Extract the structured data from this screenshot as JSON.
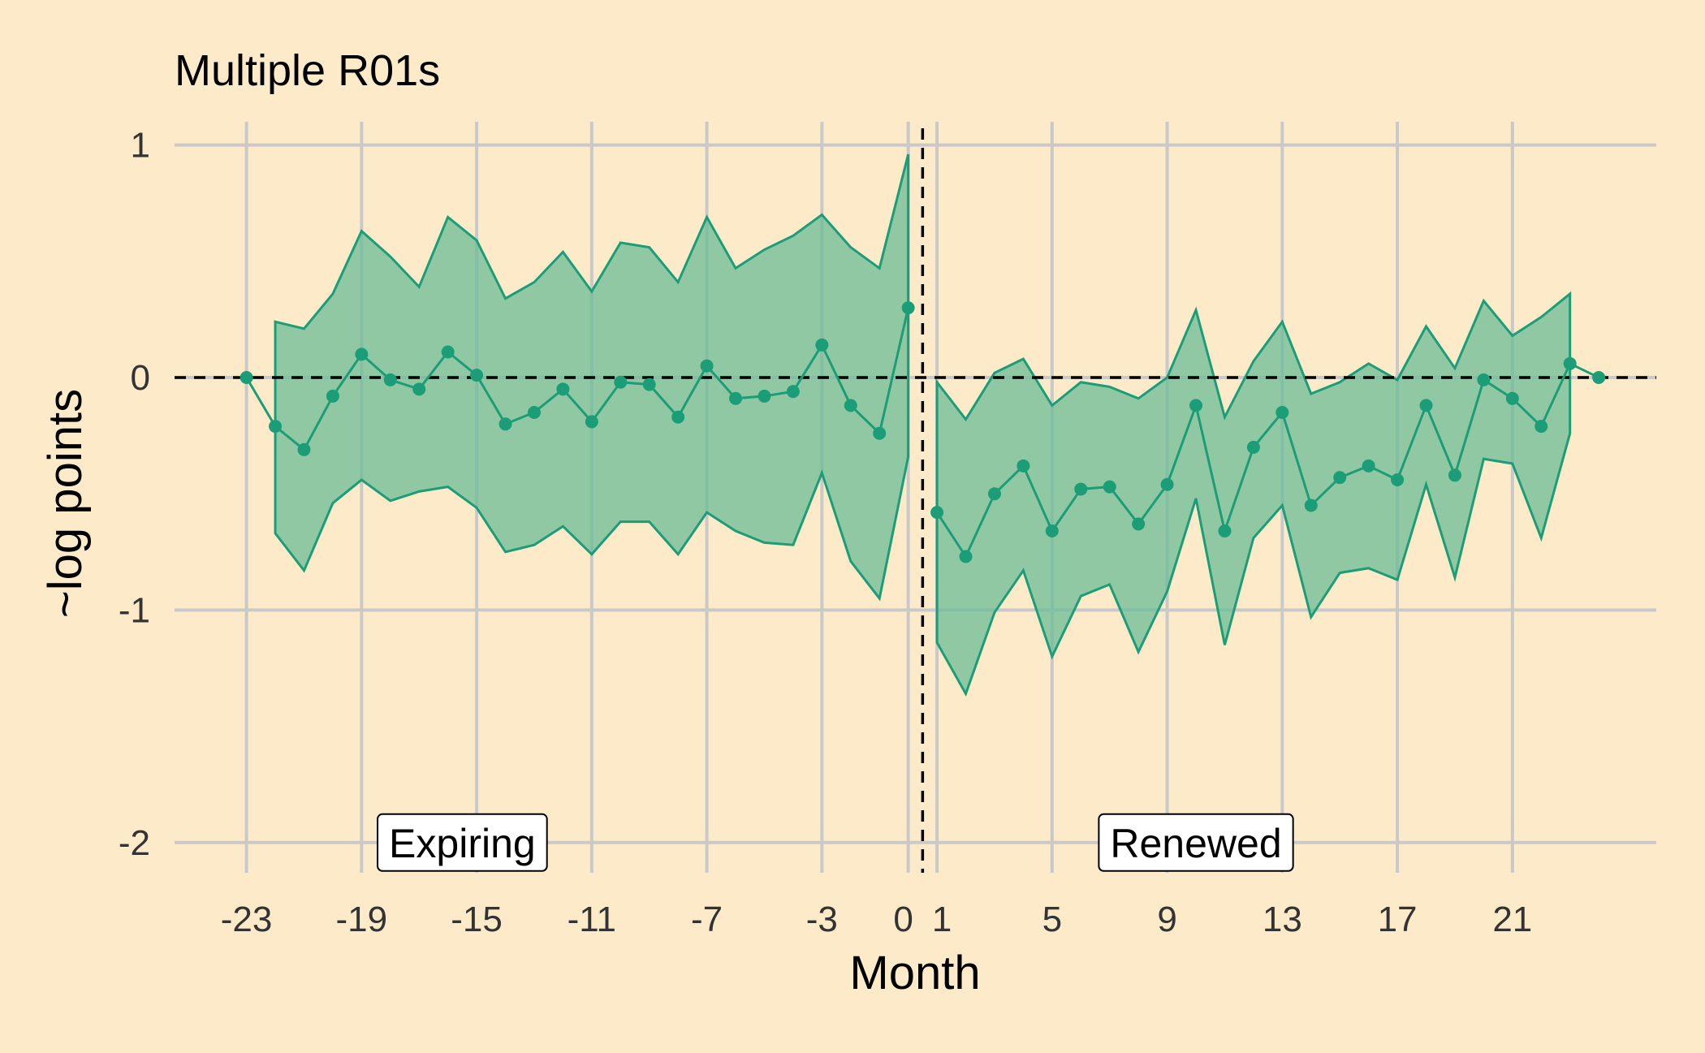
{
  "chart_data": {
    "type": "line",
    "title": "Multiple R01s",
    "xlabel": "Month",
    "ylabel": "~log points",
    "xlim": [
      -25.5,
      26
    ],
    "ylim": [
      -2.13,
      1.1
    ],
    "x_ticks": [
      -23,
      -19,
      -15,
      -11,
      -7,
      -3,
      0,
      1,
      5,
      9,
      13,
      17,
      21
    ],
    "y_ticks": [
      1,
      0,
      -1,
      -2
    ],
    "reference_lines": {
      "horizontal": 0,
      "vertical": 0.5
    },
    "colors": {
      "line": "#1b9e77",
      "band": "#66bb95",
      "background": "#fdeac9"
    },
    "annotations": [
      {
        "text": "Expiring",
        "x": -15.5,
        "y": -2
      },
      {
        "text": "Renewed",
        "x": 10,
        "y": -2
      }
    ],
    "series": [
      {
        "segment": "pre",
        "x": [
          -23,
          -22,
          -21,
          -20,
          -19,
          -18,
          -17,
          -16,
          -15,
          -14,
          -13,
          -12,
          -11,
          -10,
          -9,
          -8,
          -7,
          -6,
          -5,
          -4,
          -3,
          -2,
          -1,
          0
        ],
        "estimate": [
          0,
          -0.21,
          -0.31,
          -0.08,
          0.1,
          -0.01,
          -0.05,
          0.11,
          0.01,
          -0.2,
          -0.15,
          -0.05,
          -0.19,
          -0.02,
          -0.03,
          -0.17,
          0.05,
          -0.09,
          -0.08,
          -0.06,
          0.14,
          -0.12,
          -0.24,
          0.3
        ],
        "ci_x": [
          -22,
          -21,
          -20,
          -19,
          -18,
          -17,
          -16,
          -15,
          -14,
          -13,
          -12,
          -11,
          -10,
          -9,
          -8,
          -7,
          -6,
          -5,
          -4,
          -3,
          -2,
          -1,
          0
        ],
        "ci_lower": [
          -0.67,
          -0.83,
          -0.54,
          -0.44,
          -0.53,
          -0.49,
          -0.47,
          -0.56,
          -0.75,
          -0.72,
          -0.64,
          -0.76,
          -0.62,
          -0.62,
          -0.76,
          -0.58,
          -0.66,
          -0.71,
          -0.72,
          -0.41,
          -0.79,
          -0.95,
          -0.34
        ],
        "ci_upper": [
          0.24,
          0.21,
          0.36,
          0.63,
          0.52,
          0.39,
          0.69,
          0.59,
          0.34,
          0.41,
          0.54,
          0.37,
          0.58,
          0.56,
          0.41,
          0.69,
          0.47,
          0.55,
          0.61,
          0.7,
          0.56,
          0.47,
          0.96
        ]
      },
      {
        "segment": "post",
        "x": [
          1,
          2,
          3,
          4,
          5,
          6,
          7,
          8,
          9,
          10,
          11,
          12,
          13,
          14,
          15,
          16,
          17,
          18,
          19,
          20,
          21,
          22,
          23,
          24
        ],
        "estimate": [
          -0.58,
          -0.77,
          -0.5,
          -0.38,
          -0.66,
          -0.48,
          -0.47,
          -0.63,
          -0.46,
          -0.12,
          -0.66,
          -0.3,
          -0.15,
          -0.55,
          -0.43,
          -0.38,
          -0.44,
          -0.12,
          -0.42,
          -0.01,
          -0.09,
          -0.21,
          0.06,
          0
        ],
        "ci_x": [
          1,
          2,
          3,
          4,
          5,
          6,
          7,
          8,
          9,
          10,
          11,
          12,
          13,
          14,
          15,
          16,
          17,
          18,
          19,
          20,
          21,
          22,
          23
        ],
        "ci_lower": [
          -1.14,
          -1.36,
          -1.01,
          -0.83,
          -1.2,
          -0.94,
          -0.89,
          -1.18,
          -0.92,
          -0.52,
          -1.15,
          -0.69,
          -0.55,
          -1.03,
          -0.84,
          -0.82,
          -0.87,
          -0.46,
          -0.86,
          -0.35,
          -0.37,
          -0.69,
          -0.24
        ],
        "ci_upper": [
          -0.02,
          -0.18,
          0.02,
          0.08,
          -0.12,
          -0.02,
          -0.04,
          -0.09,
          0.0,
          0.29,
          -0.17,
          0.07,
          0.24,
          -0.07,
          -0.02,
          0.06,
          -0.01,
          0.22,
          0.04,
          0.33,
          0.18,
          0.26,
          0.36
        ]
      }
    ]
  }
}
